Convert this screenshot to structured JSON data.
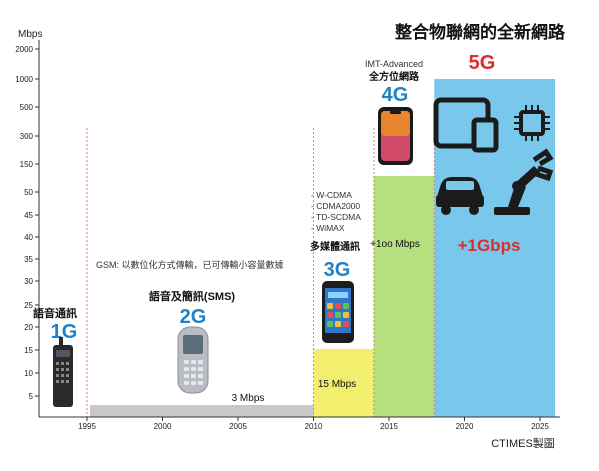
{
  "chart_data": {
    "type": "bar",
    "title": "整合物聯網的全新網路",
    "ylabel": "Mbps",
    "source": "CTIMES製圖",
    "x_ticks": [
      "1995",
      "2000",
      "2005",
      "2010",
      "2015",
      "2020",
      "2025"
    ],
    "y_ticks": [
      "5",
      "10",
      "15",
      "20",
      "25",
      "30",
      "35",
      "40",
      "45",
      "50",
      "150",
      "300",
      "500",
      "1000",
      "2000"
    ],
    "generations": [
      {
        "name": "1G",
        "label": "語音通訊",
        "x": [
          1990,
          1995
        ],
        "speed": "",
        "note": ""
      },
      {
        "name": "2G",
        "label": "語音及簡訊(SMS)",
        "x": [
          1995,
          2010
        ],
        "speed": "3 Mbps",
        "note": "GSM: 以數位化方式傳輸，已可傳輸小容量數據"
      },
      {
        "name": "3G",
        "label": "多媒體通訊",
        "x": [
          2010,
          2014
        ],
        "speed": "15 Mbps",
        "note": "- W-CDMA\n- CDMA2000\n- TD-SCDMA\n- WiMAX"
      },
      {
        "name": "4G",
        "label": "全方位網路",
        "x": [
          2014,
          2018
        ],
        "speed": "+1oo Mbps",
        "note": "IMT-Advanced"
      },
      {
        "name": "5G",
        "label": "",
        "x": [
          2018,
          2026
        ],
        "speed": "+1Gbps",
        "note": ""
      }
    ],
    "colors": {
      "2G": "#c8c8c8",
      "3G": "#f2ee6e",
      "4G": "#b6df7f",
      "5G": "#79c8ec",
      "gen_text": "#1e82c3",
      "5g_text": "#e02b2b",
      "icon": "#1b1b1b"
    }
  }
}
